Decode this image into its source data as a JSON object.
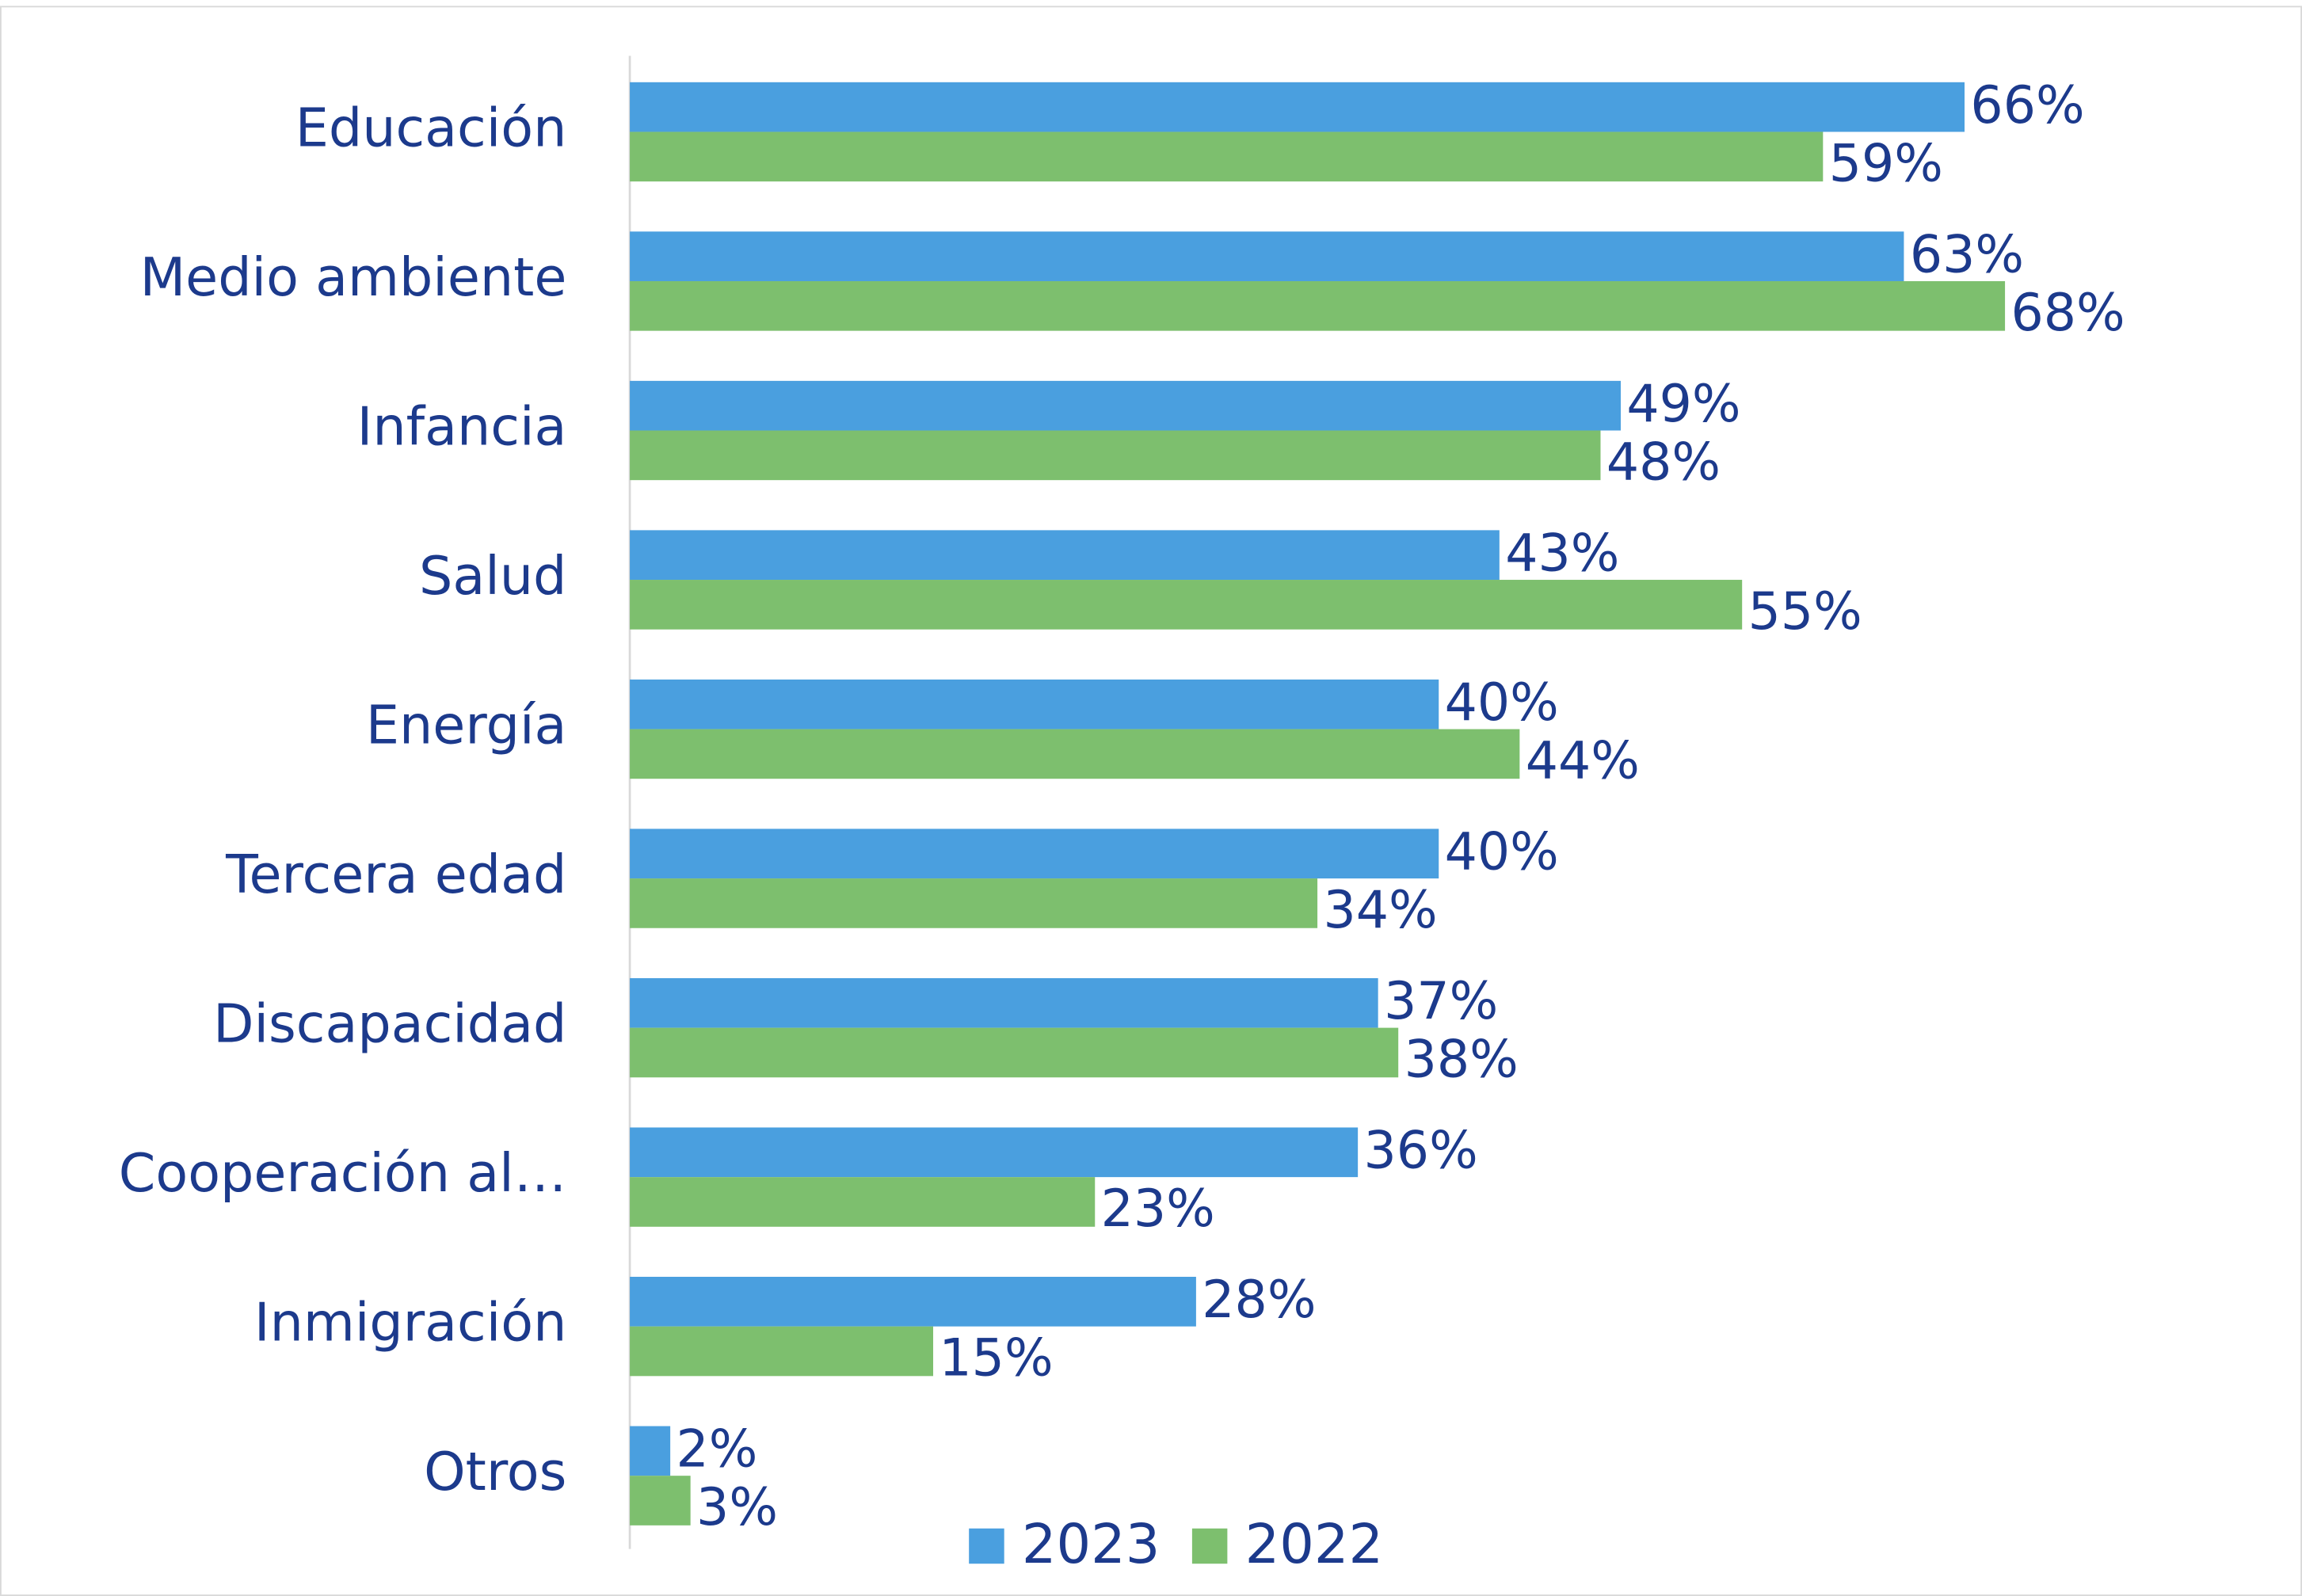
{
  "chart_data": {
    "type": "bar",
    "orientation": "horizontal",
    "categories": [
      "Educación",
      "Medio ambiente",
      "Infancia",
      "Salud",
      "Energía",
      "Tercera edad",
      "Discapacidad",
      "Cooperación al…",
      "Inmigración",
      "Otros"
    ],
    "series": [
      {
        "name": "2023",
        "color": "#4a9fdf",
        "values": [
          66,
          63,
          49,
          43,
          40,
          40,
          37,
          36,
          28,
          2
        ],
        "value_labels": [
          "66%",
          "63%",
          "49%",
          "43%",
          "40%",
          "40%",
          "37%",
          "36%",
          "28%",
          "2%"
        ]
      },
      {
        "name": "2022",
        "color": "#7dbf6e",
        "values": [
          59,
          68,
          48,
          55,
          44,
          34,
          38,
          23,
          15,
          3
        ],
        "value_labels": [
          "59%",
          "68%",
          "48%",
          "55%",
          "44%",
          "34%",
          "38%",
          "23%",
          "15%",
          "3%"
        ]
      }
    ],
    "xlim": [
      0,
      80
    ],
    "legend": "bottom"
  }
}
